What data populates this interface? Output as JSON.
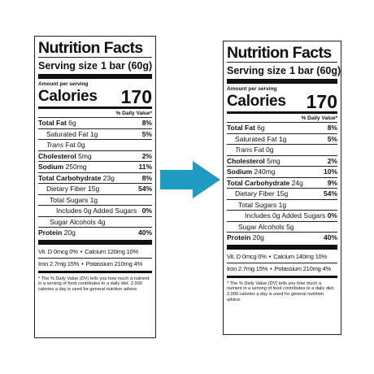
{
  "labels": [
    {
      "title": "Nutrition Facts",
      "serving_label": "Serving size",
      "serving_value": "1 bar (60g)",
      "amount_per_serving": "Amount per serving",
      "calories_label": "Calories",
      "calories_value": "170",
      "daily_value_header": "% Daily Value*",
      "total_fat": {
        "label": "Total Fat",
        "amount": "6g",
        "pct": "8%"
      },
      "saturated_fat": {
        "label": "Saturated Fat",
        "amount": "1g",
        "pct": "5%"
      },
      "trans_fat": {
        "label": "Trans",
        "amount": "Fat 0g"
      },
      "cholesterol": {
        "label": "Cholesterol",
        "amount": "5mg",
        "pct": "2%"
      },
      "sodium": {
        "label": "Sodium",
        "amount": "250mg",
        "pct": "11%"
      },
      "total_carb": {
        "label": "Total Carbohydrate",
        "amount": "23g",
        "pct": "8%"
      },
      "dietary_fiber": {
        "label": "Dietary Fiber",
        "amount": "15g",
        "pct": "54%"
      },
      "total_sugars": {
        "label": "Total Sugars",
        "amount": "1g"
      },
      "added_sugars": {
        "label": "Includes 0g Added Sugars",
        "pct": "0%"
      },
      "sugar_alcohols": {
        "label": "Sugar Alcohols",
        "amount": "4g"
      },
      "protein": {
        "label": "Protein",
        "amount": "20g",
        "pct": "40%"
      },
      "vitd": "Vit. D 0mcg 0%",
      "calcium": "Calcium 120mg 10%",
      "iron": "Iron 2.7mg 15%",
      "potassium": "Potassium 210mg 4%",
      "bullet": "•",
      "footnote": "* The % Daily Value (DV) tells you how much a nutrient in a serving of food contributes to a daily diet. 2,000 calories a day is used for general nutrition advice."
    },
    {
      "title": "Nutrition Facts",
      "serving_label": "Serving size",
      "serving_value": "1 bar (60g)",
      "amount_per_serving": "Amount per serving",
      "calories_label": "Calories",
      "calories_value": "170",
      "daily_value_header": "% Daily Value*",
      "total_fat": {
        "label": "Total Fat",
        "amount": "6g",
        "pct": "8%"
      },
      "saturated_fat": {
        "label": "Saturated Fat",
        "amount": "1g",
        "pct": "5%"
      },
      "trans_fat": {
        "label": "Trans",
        "amount": "Fat 0g"
      },
      "cholesterol": {
        "label": "Cholesterol",
        "amount": "5mg",
        "pct": "2%"
      },
      "sodium": {
        "label": "Sodium",
        "amount": "240mg",
        "pct": "10%"
      },
      "total_carb": {
        "label": "Total Carbohydrate",
        "amount": "24g",
        "pct": "9%"
      },
      "dietary_fiber": {
        "label": "Dietary Fiber",
        "amount": "15g",
        "pct": "54%"
      },
      "total_sugars": {
        "label": "Total Sugars",
        "amount": "1g"
      },
      "added_sugars": {
        "label": "Includes 0g Added Sugars",
        "pct": "0%"
      },
      "sugar_alcohols": {
        "label": "Sugar Alcohols",
        "amount": "5g"
      },
      "protein": {
        "label": "Protein",
        "amount": "20g",
        "pct": "40%"
      },
      "vitd": "Vit. D 0mcg 0%",
      "calcium": "Calcium 140mg 10%",
      "iron": "Iron 2.7mg 15%",
      "potassium": "Potassium 210mg 4%",
      "bullet": "•",
      "footnote": "* The % Daily Value (DV) tells you how much a nutrient in a serving of food contributes to a daily diet. 2,000 calories a day is used for general nutrition advice."
    }
  ],
  "arrow": {
    "icon": "right-arrow-icon",
    "color": "#1f9bc1"
  }
}
